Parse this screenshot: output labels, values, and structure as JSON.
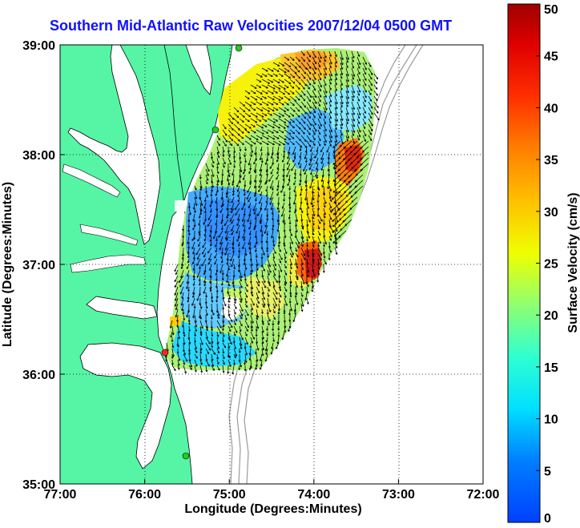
{
  "title": "Southern Mid-Atlantic Raw Velocities 2007/12/04 0500 GMT",
  "x_axis": {
    "label": "Longitude (Degrees:Minutes)",
    "ticks": [
      "77:00",
      "76:00",
      "75:00",
      "74:00",
      "73:00",
      "72:00"
    ],
    "range": [
      -77,
      -72
    ]
  },
  "y_axis": {
    "label": "Latitude (Degrees:Minutes)",
    "ticks": [
      "39:00",
      "38:00",
      "37:00",
      "36:00",
      "35:00"
    ],
    "range": [
      35,
      39
    ]
  },
  "colorbar": {
    "label": "Surface Velocity (cm/s)",
    "ticks": [
      "50",
      "45",
      "40",
      "35",
      "30",
      "25",
      "20",
      "15",
      "10",
      "5",
      "0"
    ],
    "range": [
      0,
      50
    ],
    "colormap": [
      "#0000ff",
      "#00aaff",
      "#00ffff",
      "#55ffaa",
      "#aaff55",
      "#ffff00",
      "#ffaa00",
      "#ff5500",
      "#ff0000",
      "#aa0000"
    ]
  },
  "colors": {
    "land": "#55f5a5",
    "coastline": "#000000",
    "bathymetry": "#9a9a9a",
    "station_green": "#22cc22",
    "station_red": "#ff2222",
    "grid": "#000000"
  }
}
